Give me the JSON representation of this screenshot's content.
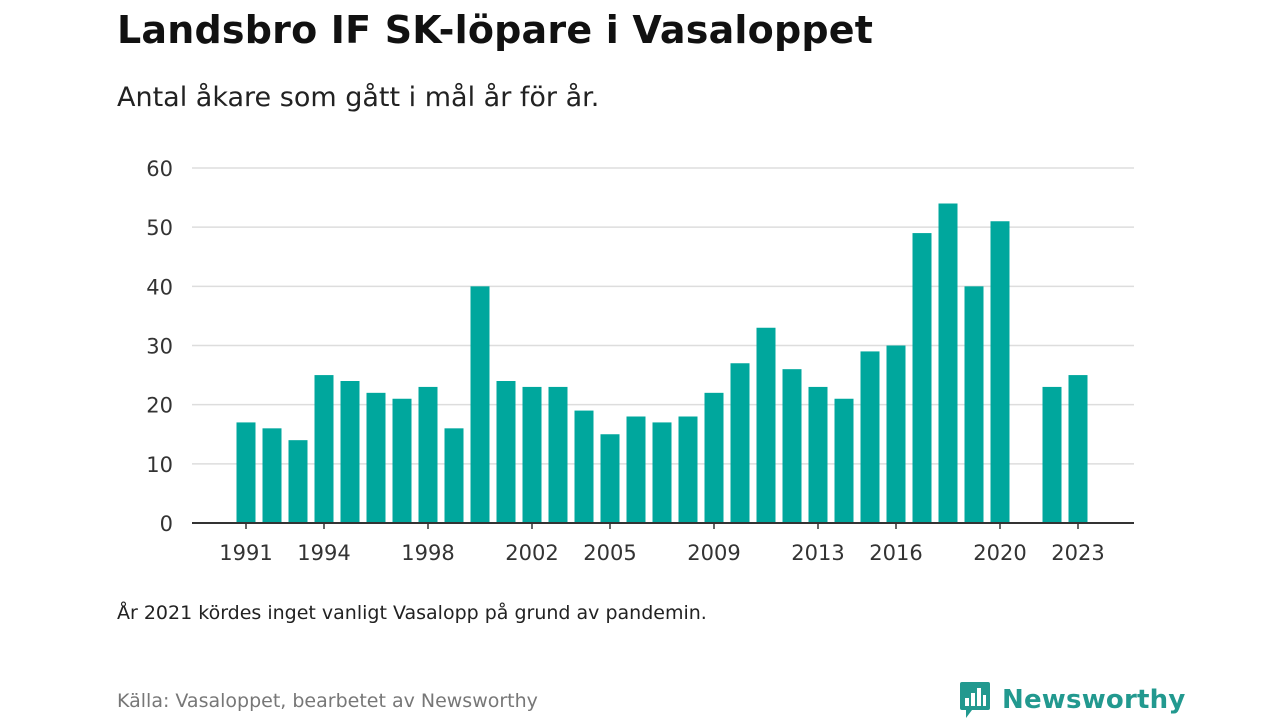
{
  "title": "Landsbro IF SK-löpare i Vasaloppet",
  "subtitle": "Antal åkare som gått i mål år för år.",
  "note": "År 2021 kördes inget vanligt Vasalopp på grund av pandemin.",
  "source": "Källa: Vasaloppet, bearbetet av Newsworthy",
  "brand": {
    "name": "Newsworthy",
    "icon": "newsworthy-logo-icon"
  },
  "colors": {
    "bar": "#00a79d",
    "grid": "#dddddd",
    "axis": "#333333",
    "brand": "#22998f"
  },
  "chart_data": {
    "type": "bar",
    "title": "Landsbro IF SK-löpare i Vasaloppet",
    "subtitle": "Antal åkare som gått i mål år för år.",
    "xlabel": "",
    "ylabel": "",
    "ylim": [
      0,
      60
    ],
    "yticks": [
      0,
      10,
      20,
      30,
      40,
      50,
      60
    ],
    "xticks": [
      1991,
      1994,
      1998,
      2002,
      2005,
      2009,
      2013,
      2016,
      2020,
      2023
    ],
    "grid": true,
    "categories": [
      1991,
      1992,
      1993,
      1994,
      1995,
      1996,
      1997,
      1998,
      1999,
      2000,
      2001,
      2002,
      2003,
      2004,
      2005,
      2006,
      2007,
      2008,
      2009,
      2010,
      2011,
      2012,
      2013,
      2014,
      2015,
      2016,
      2017,
      2018,
      2019,
      2020,
      2021,
      2022,
      2023
    ],
    "values": [
      17,
      16,
      14,
      25,
      24,
      22,
      21,
      23,
      16,
      40,
      24,
      23,
      23,
      19,
      15,
      18,
      17,
      18,
      22,
      27,
      33,
      26,
      23,
      21,
      29,
      30,
      49,
      54,
      40,
      51,
      null,
      23,
      25
    ]
  }
}
